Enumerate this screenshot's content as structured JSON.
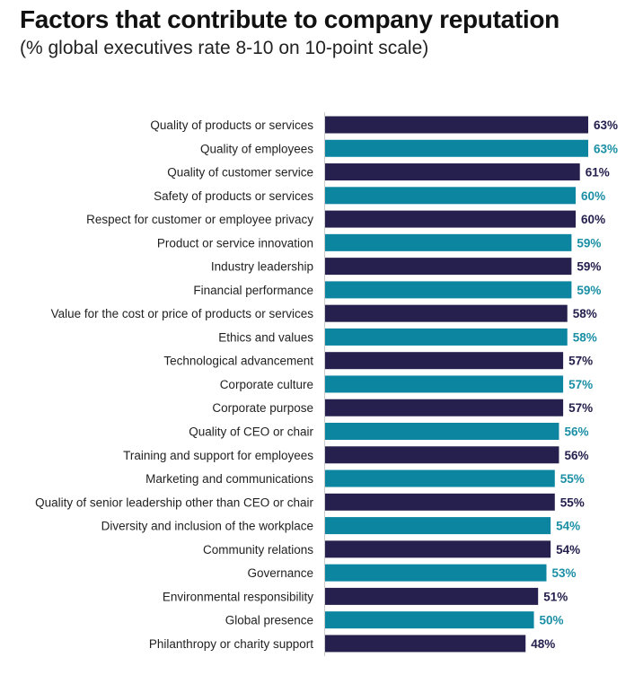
{
  "chart_data": {
    "type": "bar",
    "orientation": "horizontal",
    "title": "Factors that contribute to company reputation",
    "subtitle": "(% global executives rate 8-10 on 10-point scale)",
    "categories": [
      "Quality of products or services",
      "Quality of employees",
      "Quality of customer service",
      "Safety of products or services",
      "Respect for customer or employee privacy",
      "Product or service innovation",
      "Industry leadership",
      "Financial performance",
      "Value for the cost or price of products or services",
      "Ethics and values",
      "Technological advancement",
      "Corporate culture",
      "Corporate purpose",
      "Quality of CEO or chair",
      "Training and support for employees",
      "Marketing and communications",
      "Quality of senior leadership other than CEO or chair",
      "Diversity and inclusion of the workplace",
      "Community relations",
      "Governance",
      "Environmental responsibility",
      "Global presence",
      "Philanthropy or charity support"
    ],
    "values": [
      63,
      63,
      61,
      60,
      60,
      59,
      59,
      59,
      58,
      58,
      57,
      57,
      57,
      56,
      56,
      55,
      55,
      54,
      54,
      53,
      51,
      50,
      48
    ],
    "value_suffix": "%",
    "xlim": [
      0,
      63
    ],
    "grid": false,
    "colors": {
      "odd": "#25204d",
      "even": "#0b85a0",
      "even_label": "#1a8fa5",
      "axis": "#cccccc"
    }
  }
}
